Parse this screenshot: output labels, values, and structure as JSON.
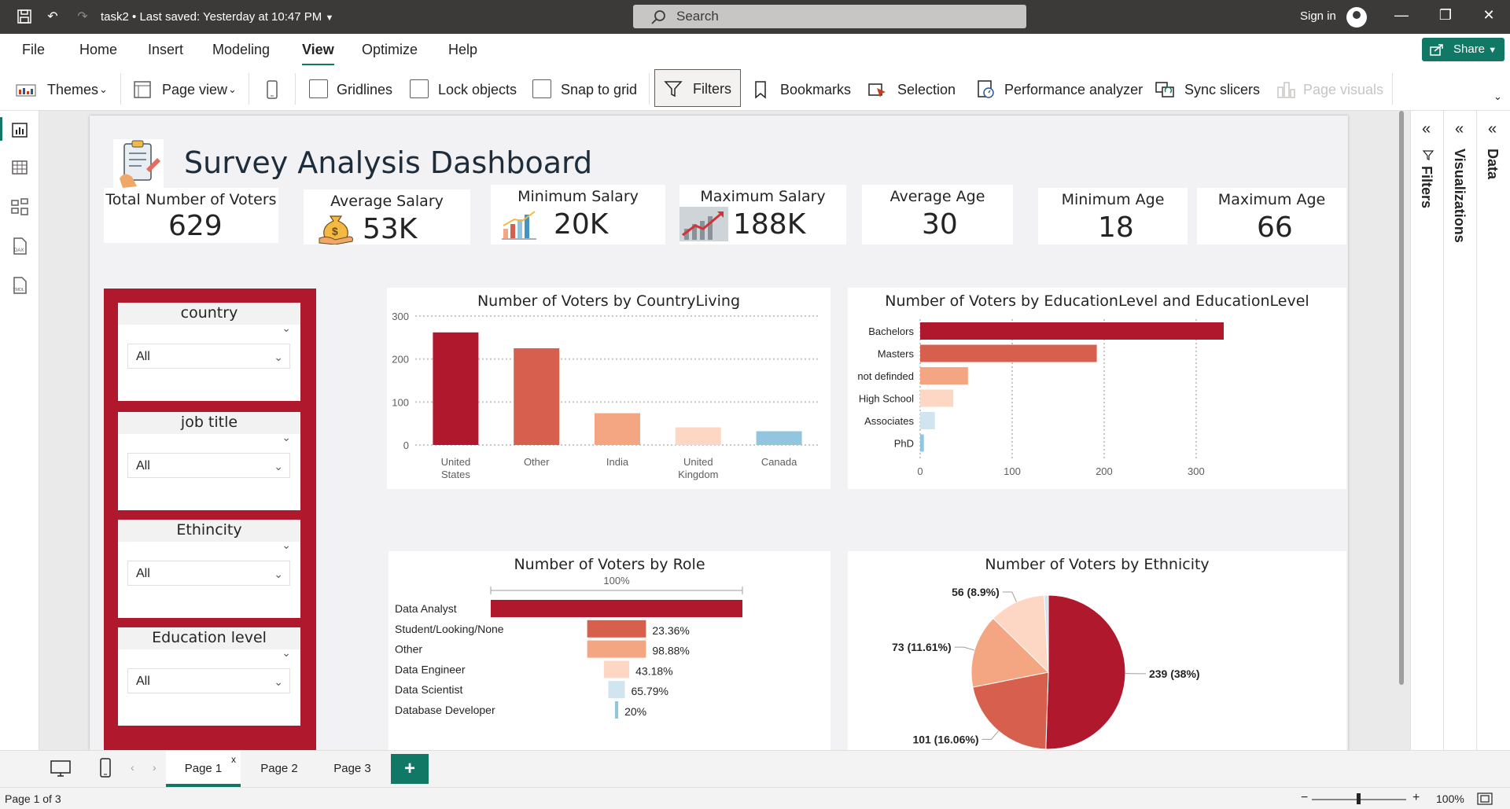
{
  "titlebar": {
    "file_title": "task2 • Last saved: Yesterday at 10:47 PM",
    "search_placeholder": "Search",
    "signin": "Sign in"
  },
  "menu": {
    "tabs": [
      "File",
      "Home",
      "Insert",
      "Modeling",
      "View",
      "Optimize",
      "Help"
    ],
    "active": "View",
    "share": "Share"
  },
  "ribbon": {
    "themes": "Themes",
    "page_view": "Page view",
    "gridlines": "Gridlines",
    "lock_objects": "Lock objects",
    "snap_to_grid": "Snap to grid",
    "filters": "Filters",
    "bookmarks": "Bookmarks",
    "selection": "Selection",
    "performance_analyzer": "Performance analyzer",
    "sync_slicers": "Sync slicers",
    "page_visuals": "Page visuals"
  },
  "panes": {
    "filters": "Filters",
    "visualizations": "Visualizations",
    "data": "Data"
  },
  "report": {
    "title": "Survey Analysis Dashboard",
    "kpis": [
      {
        "label": "Total Number of Voters",
        "value": "629"
      },
      {
        "label": "Average Salary",
        "value": "53K"
      },
      {
        "label": "Minimum Salary",
        "value": "20K"
      },
      {
        "label": "Maximum Salary",
        "value": "188K"
      },
      {
        "label": "Average Age",
        "value": "30"
      },
      {
        "label": "Minimum Age",
        "value": "18"
      },
      {
        "label": "Maximum Age",
        "value": "66"
      }
    ],
    "slicers": [
      {
        "name": "country",
        "value": "All"
      },
      {
        "name": "job title",
        "value": "All"
      },
      {
        "name": "Ethincity",
        "value": "All"
      },
      {
        "name": "Education level",
        "value": "All"
      }
    ]
  },
  "chart_data": [
    {
      "type": "bar",
      "title": "Number of Voters by CountryLiving",
      "categories": [
        "United States",
        "Other",
        "India",
        "United Kingdom",
        "Canada"
      ],
      "values": [
        262,
        225,
        74,
        41,
        32
      ],
      "ylim": [
        0,
        300
      ],
      "yticks": [
        "0",
        "100",
        "200",
        "300"
      ],
      "colors": [
        "#b0182e",
        "#d6604d",
        "#f4a582",
        "#fdd7c4",
        "#92c5de"
      ]
    },
    {
      "type": "bar",
      "title": "Number of Voters by EducationLevel and EducationLevel",
      "orientation": "horizontal",
      "categories": [
        "Bachelors",
        "Masters",
        "not definded",
        "High School",
        "Associates",
        "PhD"
      ],
      "values": [
        330,
        192,
        52,
        36,
        16,
        4
      ],
      "xlim": [
        0,
        330
      ],
      "xticks": [
        "0",
        "100",
        "200",
        "300"
      ],
      "colors": [
        "#b0182e",
        "#d6604d",
        "#f4a582",
        "#fdd7c4",
        "#d1e5f0",
        "#92c5de"
      ]
    },
    {
      "type": "bar",
      "title": "Number of Voters by Role",
      "subtitle": "100%",
      "categories": [
        "Data Analyst",
        "Student/Looking/None",
        "Other",
        "Data Engineer",
        "Data Scientist",
        "Database Developer"
      ],
      "values": [
        100,
        23.36,
        23.36,
        10.09,
        6.54,
        1.31
      ],
      "labels": [
        "",
        "23.36%",
        "98.88%",
        "43.18%",
        "65.79%",
        "20%"
      ],
      "colors": [
        "#b0182e",
        "#d6604d",
        "#f4a582",
        "#fdd7c4",
        "#d1e5f0",
        "#92c5de"
      ]
    },
    {
      "type": "pie",
      "title": "Number of Voters by Ethnicity",
      "values": [
        239,
        101,
        73,
        56,
        4
      ],
      "labels": [
        "239 (38%)",
        "101 (16.06%)",
        "73 (11.61%)",
        "56 (8.9%)",
        ""
      ],
      "colors": [
        "#b0182e",
        "#d6604d",
        "#f4a582",
        "#fdd7c4",
        "#d1e5f0",
        "#92c5de",
        "#4393c3"
      ]
    }
  ],
  "pages": {
    "tabs": [
      "Page 1",
      "Page 2",
      "Page 3"
    ],
    "active": "Page 1",
    "add": "+"
  },
  "status": {
    "page_info": "Page 1 of 3",
    "zoom": "100%"
  }
}
